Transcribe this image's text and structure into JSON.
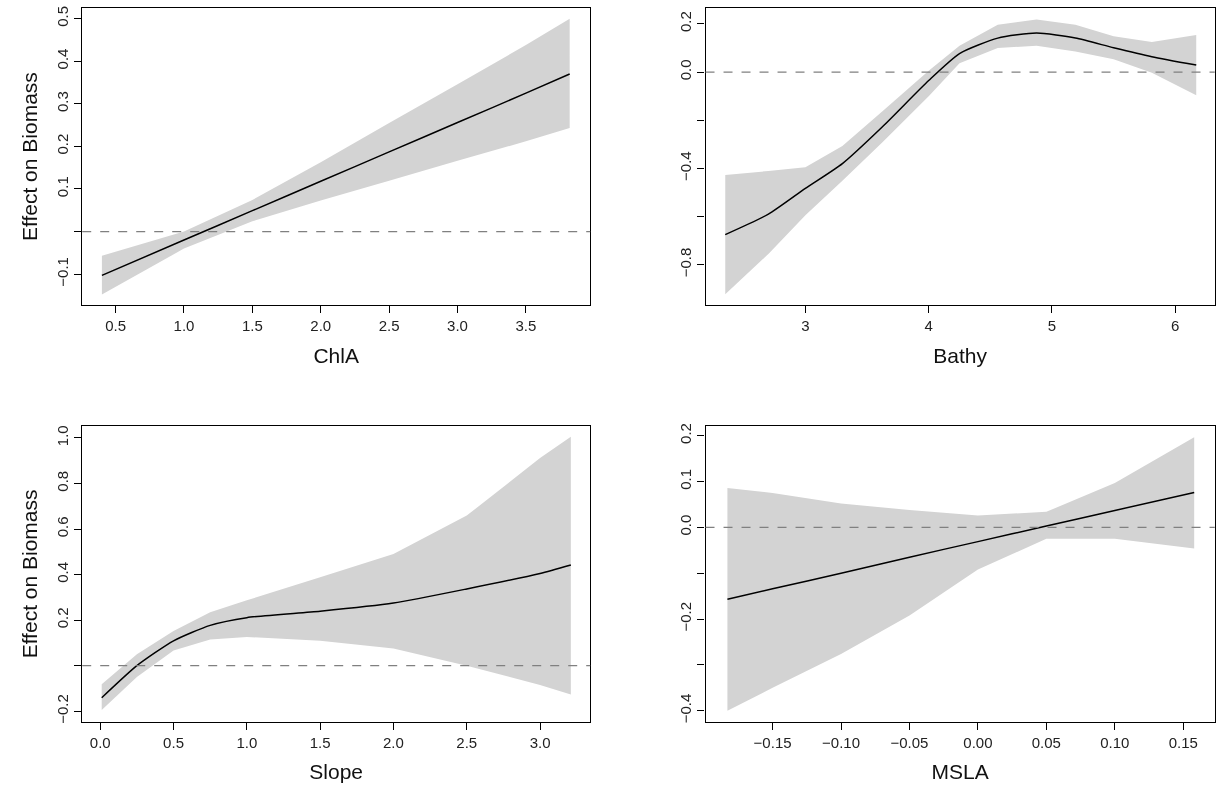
{
  "chart_data": [
    {
      "type": "line",
      "xlabel": "ChlA",
      "ylabel": "Effect on Biomass",
      "xlim": [
        0.256,
        3.97
      ],
      "ylim": [
        -0.173,
        0.525
      ],
      "xticks": [
        {
          "value": 0.5,
          "label": "0.5"
        },
        {
          "value": 1.0,
          "label": "1.0"
        },
        {
          "value": 1.5,
          "label": "1.5"
        },
        {
          "value": 2.0,
          "label": "2.0"
        },
        {
          "value": 2.5,
          "label": "2.5"
        },
        {
          "value": 3.0,
          "label": "3.0"
        },
        {
          "value": 3.5,
          "label": "3.5"
        }
      ],
      "yticks": [
        {
          "value": -0.1,
          "label": "−0.1"
        },
        {
          "value": 0,
          "label": null
        },
        {
          "value": 0.1,
          "label": "0.1"
        },
        {
          "value": 0.2,
          "label": "0.2"
        },
        {
          "value": 0.3,
          "label": "0.3"
        },
        {
          "value": 0.4,
          "label": "0.4"
        },
        {
          "value": 0.5,
          "label": "0.5"
        }
      ],
      "line_style": "solid",
      "ref_lines": [
        {
          "axis": "y",
          "value": 0,
          "color": "#808080",
          "line_style": "dashed"
        }
      ],
      "series": [
        {
          "color": "#000000",
          "x": [
            0.4,
            1.0,
            1.5,
            2.0,
            2.5,
            3.0,
            3.5,
            3.82
          ],
          "values": [
            -0.103,
            -0.02,
            0.049,
            0.118,
            0.187,
            0.256,
            0.325,
            0.37
          ],
          "lower": [
            -0.148,
            -0.04,
            0.024,
            0.073,
            0.119,
            0.166,
            0.212,
            0.243
          ],
          "upper": [
            -0.057,
            0.0,
            0.074,
            0.163,
            0.255,
            0.346,
            0.438,
            0.5
          ]
        }
      ]
    },
    {
      "type": "line",
      "xlabel": "Bathy",
      "xlim": [
        2.19,
        6.32
      ],
      "ylim": [
        -0.968,
        0.266
      ],
      "xticks": [
        {
          "value": 3,
          "label": "3"
        },
        {
          "value": 4,
          "label": "4"
        },
        {
          "value": 5,
          "label": "5"
        },
        {
          "value": 6,
          "label": "6"
        }
      ],
      "yticks": [
        {
          "value": -0.8,
          "label": "−0.8"
        },
        {
          "value": -0.6,
          "label": null
        },
        {
          "value": -0.4,
          "label": "−0.4"
        },
        {
          "value": -0.2,
          "label": null
        },
        {
          "value": 0.0,
          "label": "0.0"
        },
        {
          "value": 0.2,
          "label": "0.2"
        }
      ],
      "line_style": "solid",
      "ref_lines": [
        {
          "axis": "y",
          "value": 0,
          "color": "#808080",
          "line_style": "dashed"
        }
      ],
      "series": [
        {
          "color": "#000000",
          "x": [
            2.35,
            2.7,
            3.0,
            3.3,
            3.625,
            4.0,
            4.25,
            4.56,
            4.875,
            5.19,
            5.5,
            5.81,
            6.17
          ],
          "values": [
            -0.675,
            -0.59,
            -0.483,
            -0.38,
            -0.227,
            -0.035,
            0.077,
            0.141,
            0.162,
            0.141,
            0.101,
            0.064,
            0.029
          ],
          "lower": [
            -0.923,
            -0.755,
            -0.595,
            -0.451,
            -0.291,
            -0.1,
            0.037,
            0.1,
            0.109,
            0.085,
            0.053,
            -0.003,
            -0.096
          ],
          "upper": [
            -0.427,
            -0.411,
            -0.395,
            -0.307,
            -0.163,
            0.005,
            0.109,
            0.197,
            0.218,
            0.197,
            0.149,
            0.125,
            0.154
          ]
        }
      ]
    },
    {
      "type": "line",
      "xlabel": "Slope",
      "ylabel": "Effect on Biomass",
      "xlim": [
        -0.123,
        3.342
      ],
      "ylim": [
        -0.246,
        1.052
      ],
      "xticks": [
        {
          "value": 0.0,
          "label": "0.0"
        },
        {
          "value": 0.5,
          "label": "0.5"
        },
        {
          "value": 1.0,
          "label": "1.0"
        },
        {
          "value": 1.5,
          "label": "1.5"
        },
        {
          "value": 2.0,
          "label": "2.0"
        },
        {
          "value": 2.5,
          "label": "2.5"
        },
        {
          "value": 3.0,
          "label": "3.0"
        }
      ],
      "yticks": [
        {
          "value": -0.2,
          "label": "−0.2"
        },
        {
          "value": 0,
          "label": null
        },
        {
          "value": 0.2,
          "label": "0.2"
        },
        {
          "value": 0.4,
          "label": "0.4"
        },
        {
          "value": 0.6,
          "label": "0.6"
        },
        {
          "value": 0.8,
          "label": "0.8"
        },
        {
          "value": 1.0,
          "label": "1.0"
        }
      ],
      "line_style": "solid",
      "ref_lines": [
        {
          "axis": "y",
          "value": 0,
          "color": "#808080",
          "line_style": "dashed"
        }
      ],
      "series": [
        {
          "color": "#000000",
          "x": [
            0.01,
            0.25,
            0.5,
            0.75,
            1.0,
            1.5,
            2.0,
            2.5,
            3.0,
            3.21
          ],
          "values": [
            -0.141,
            0.0,
            0.109,
            0.177,
            0.211,
            0.239,
            0.275,
            0.337,
            0.405,
            0.442
          ],
          "lower": [
            -0.195,
            -0.05,
            0.067,
            0.115,
            0.126,
            0.109,
            0.076,
            0.0,
            -0.085,
            -0.127
          ],
          "upper": [
            -0.082,
            0.05,
            0.152,
            0.235,
            0.287,
            0.388,
            0.49,
            0.659,
            0.912,
            1.005
          ]
        }
      ]
    },
    {
      "type": "line",
      "xlabel": "MSLA",
      "xlim": [
        -0.199,
        0.173
      ],
      "ylim": [
        -0.424,
        0.221
      ],
      "xticks": [
        {
          "value": -0.15,
          "label": "−0.15"
        },
        {
          "value": -0.1,
          "label": "−0.10"
        },
        {
          "value": -0.05,
          "label": "−0.05"
        },
        {
          "value": 0,
          "label": "0.00"
        },
        {
          "value": 0.05,
          "label": "0.05"
        },
        {
          "value": 0.1,
          "label": "0.10"
        },
        {
          "value": 0.15,
          "label": "0.15"
        }
      ],
      "yticks": [
        {
          "value": -0.4,
          "label": "−0.4"
        },
        {
          "value": -0.3,
          "label": null
        },
        {
          "value": -0.2,
          "label": "−0.2"
        },
        {
          "value": -0.1,
          "label": null
        },
        {
          "value": 0.0,
          "label": "0.0"
        },
        {
          "value": 0.1,
          "label": "0.1"
        },
        {
          "value": 0.2,
          "label": "0.2"
        }
      ],
      "line_style": "solid",
      "ref_lines": [
        {
          "axis": "y",
          "value": 0,
          "color": "#808080",
          "line_style": "dashed"
        }
      ],
      "series": [
        {
          "color": "#000000",
          "x": [
            -0.183,
            -0.15,
            -0.1,
            -0.05,
            0.0,
            0.05,
            0.1,
            0.158
          ],
          "values": [
            -0.157,
            -0.134,
            -0.1,
            -0.065,
            -0.031,
            0.003,
            0.037,
            0.076
          ],
          "lower": [
            -0.4,
            -0.35,
            -0.276,
            -0.192,
            -0.092,
            -0.025,
            -0.025,
            -0.046
          ],
          "upper": [
            0.086,
            0.075,
            0.052,
            0.038,
            0.026,
            0.034,
            0.097,
            0.197
          ]
        }
      ]
    }
  ]
}
